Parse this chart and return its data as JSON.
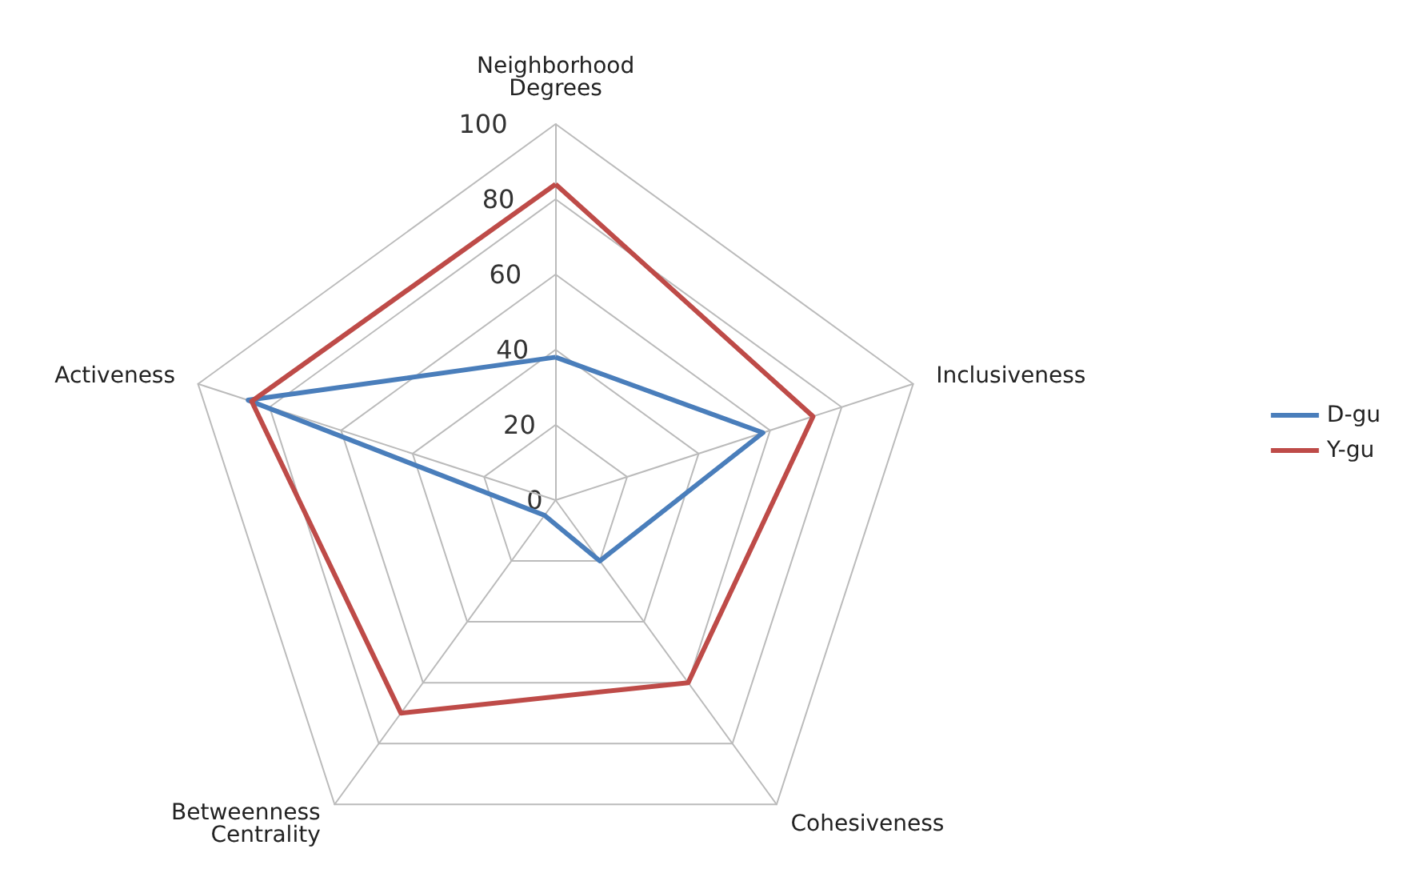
{
  "chart_data": {
    "type": "radar",
    "categories": [
      "Neighborhood\nDegrees",
      "Inclusiveness",
      "Cohesiveness",
      "Betweenness\nCentrality",
      "Activeness"
    ],
    "series": [
      {
        "name": "D-gu",
        "color": "#4a7ebb",
        "values": [
          38,
          58,
          20,
          5,
          86
        ]
      },
      {
        "name": "Y-gu",
        "color": "#be4b48",
        "values": [
          84,
          72,
          60,
          70,
          85
        ]
      }
    ],
    "ylim": [
      0,
      100
    ],
    "yticks": [
      0,
      20,
      40,
      60,
      80,
      100
    ],
    "legend": "right",
    "marker": "none",
    "grid": true
  }
}
